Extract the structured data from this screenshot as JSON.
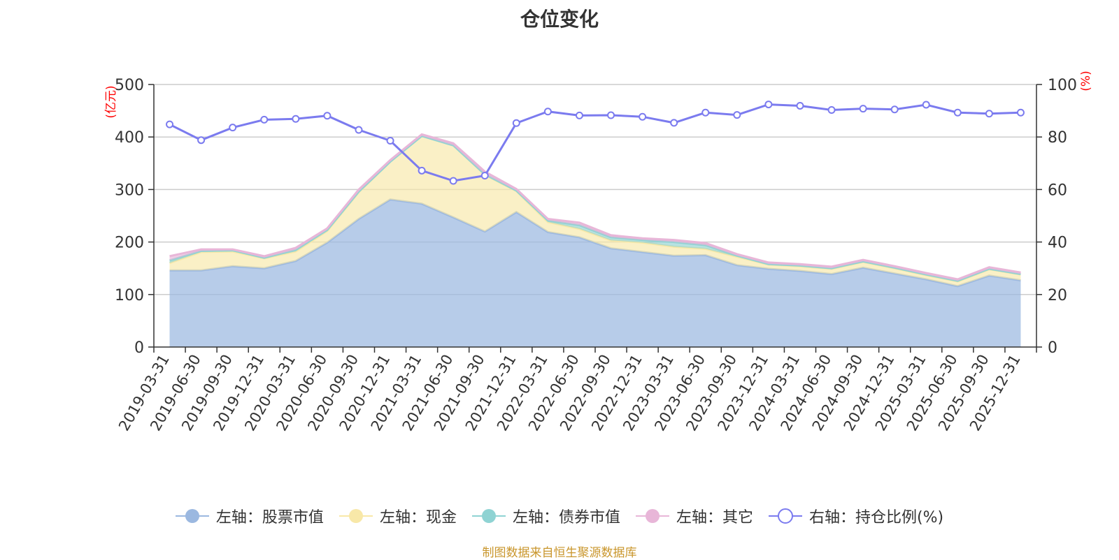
{
  "title": "仓位变化",
  "footer": "制图数据来自恒生聚源数据库",
  "colors": {
    "stock": "#9bb8e0",
    "cash": "#f8e8a8",
    "bond": "#8fd3d3",
    "other": "#e8b6d8",
    "ratio": "#7b7bef",
    "axis_unit": "#ff0000",
    "text": "#333333",
    "grid": "#cccccc"
  },
  "chart_data": {
    "type": "area",
    "title": "仓位变化",
    "left_axis": {
      "label": "(亿元)",
      "min": 0,
      "max": 500,
      "ticks": [
        0,
        100,
        200,
        300,
        400,
        500
      ]
    },
    "right_axis": {
      "label": "(%)",
      "min": 0,
      "max": 100,
      "ticks": [
        0,
        20,
        40,
        60,
        80,
        100
      ]
    },
    "categories": [
      "2019-03-31",
      "2019-06-30",
      "2019-09-30",
      "2019-12-31",
      "2020-03-31",
      "2020-06-30",
      "2020-09-30",
      "2020-12-31",
      "2021-03-31",
      "2021-06-30",
      "2021-09-30",
      "2021-12-31",
      "2022-03-31",
      "2022-06-30",
      "2022-09-30",
      "2022-12-31",
      "2023-03-31",
      "2023-06-30",
      "2023-09-30",
      "2023-12-31",
      "2024-03-31",
      "2024-06-30",
      "2024-09-30",
      "2024-12-31",
      "2025-03-31",
      "2025-06-30",
      "2025-09-30",
      "2025-12-31"
    ],
    "series": [
      {
        "key": "stock",
        "name": "左轴：股票市值",
        "axis": "left",
        "stacked": true,
        "values": [
          146,
          146,
          154,
          150,
          164,
          199,
          244,
          281,
          273,
          247,
          220,
          257,
          219,
          209,
          188,
          181,
          174,
          175,
          156,
          149,
          145,
          139,
          151,
          140,
          129,
          116,
          136,
          127
        ]
      },
      {
        "key": "cash",
        "name": "左轴：现金",
        "axis": "left",
        "stacked": true,
        "values": [
          14,
          35,
          28,
          19,
          18,
          22,
          51,
          72,
          129,
          137,
          108,
          40,
          19,
          16,
          15,
          18,
          17,
          12,
          16,
          8,
          9,
          10,
          11,
          10,
          8,
          9,
          12,
          11
        ]
      },
      {
        "key": "bond",
        "name": "左轴：债券市值",
        "axis": "left",
        "stacked": true,
        "values": [
          5,
          2,
          2,
          1,
          3,
          2,
          1,
          0,
          0,
          0,
          1,
          1,
          3,
          7,
          6,
          5,
          9,
          7,
          2,
          1,
          1,
          1,
          1,
          1,
          1,
          1,
          1,
          1
        ]
      },
      {
        "key": "other",
        "name": "左轴：其它",
        "axis": "left",
        "stacked": true,
        "values": [
          8,
          3,
          2,
          3,
          4,
          3,
          4,
          3,
          3,
          4,
          5,
          3,
          3,
          5,
          4,
          3,
          4,
          4,
          3,
          3,
          3,
          3,
          3,
          3,
          3,
          3,
          3,
          3
        ]
      },
      {
        "key": "ratio",
        "name": "右轴：持仓比例(%)",
        "axis": "right",
        "stacked": false,
        "type": "line",
        "values": [
          84.8,
          78.8,
          83.6,
          86.6,
          86.9,
          88.1,
          82.7,
          78.6,
          67.2,
          63.3,
          65.3,
          85.3,
          89.7,
          88.2,
          88.3,
          87.7,
          85.4,
          89.3,
          88.4,
          92.4,
          91.9,
          90.3,
          90.8,
          90.5,
          92.3,
          89.3,
          88.9,
          89.3
        ]
      }
    ],
    "legend_position": "bottom",
    "grid": true
  }
}
